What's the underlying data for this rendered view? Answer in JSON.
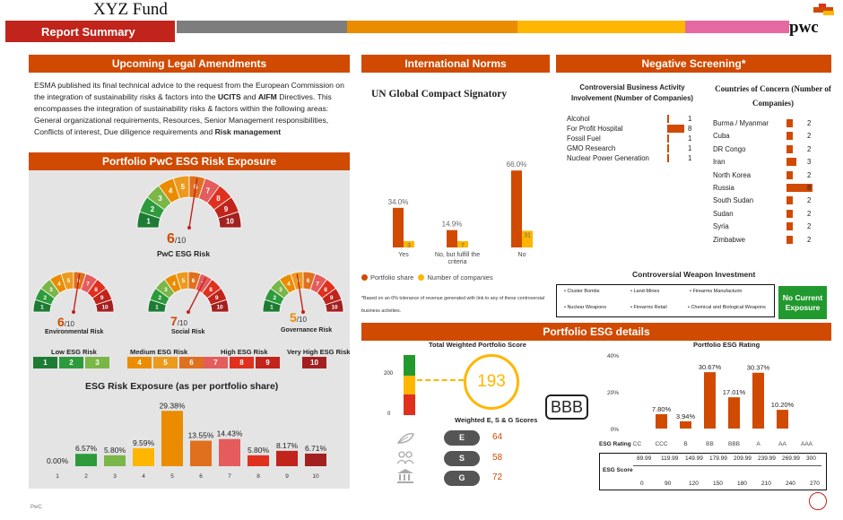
{
  "brand": {
    "fund_title": "XYZ Fund",
    "report_title": "Report Summary",
    "logo_text": "pwc",
    "footer": "PwC"
  },
  "colors": {
    "accent": "#d04a02",
    "dark_red": "#a32020",
    "grey": "#7d7d7d",
    "orange": "#eb8c00",
    "yellow": "#ffb600",
    "pink": "#e669a2",
    "green_box": "#22992e"
  },
  "legal": {
    "header": "Upcoming Legal Amendments",
    "p1": "ESMA published its final technical advice to the request from the European Commission on the integration of sustainability risks & factors into the ",
    "ucits": "UCITS",
    "and": " and ",
    "aifm": "AIFM",
    "p2": " Directives. This encompasses the integration of sustainability risks & factors within the following areas: General organizational requirements, Resources, Senior Management responsibilities, Conflicts of interest, Due diligence requirements and ",
    "risk": "Risk management"
  },
  "esg_exposure": {
    "header": "Portfolio PwC ESG Risk Exposure",
    "main": {
      "value": "6",
      "denom": "/10",
      "label": "PwC ESG Risk"
    },
    "env": {
      "value": "6",
      "denom": "/10",
      "label": "Environmental Risk"
    },
    "social": {
      "value": "7",
      "denom": "/10",
      "label": "Social Risk"
    },
    "gov": {
      "value": "5",
      "denom": "/10",
      "label": "Governance Risk"
    },
    "legend": {
      "low": "Low ESG Risk",
      "medium": "Medium ESG Risk",
      "high": "High ESG Risk",
      "very_high": "Very High ESG Risk"
    },
    "chart_title": "ESG Risk Exposure (as per portfolio share)"
  },
  "norms": {
    "header": "International Norms",
    "title": "UN Global Compact Signatory",
    "legend_share": "Portfolio share",
    "legend_count": "Number of companies",
    "footnote": "*Based on an 0% tolerance of revenue generated with link to any of these controversial business activities."
  },
  "screening": {
    "header": "Negative Screening*",
    "activity_title": "Controversial Business Activity Involvement (Number of Companies)",
    "activities": [
      {
        "name": "Alcohol",
        "value": 1
      },
      {
        "name": "For Profit Hospital",
        "value": 8
      },
      {
        "name": "Fossil Fuel",
        "value": 1
      },
      {
        "name": "GMO Research",
        "value": 1
      },
      {
        "name": "Nuclear Power Generation",
        "value": 1
      }
    ],
    "countries_title": "Countries of Concern (Number of Companies)",
    "countries": [
      {
        "name": "Burma / Myanmar",
        "value": 2
      },
      {
        "name": "Cuba",
        "value": 2
      },
      {
        "name": "DR Congo",
        "value": 2
      },
      {
        "name": "Iran",
        "value": 3
      },
      {
        "name": "North Korea",
        "value": 2
      },
      {
        "name": "Russia",
        "value": 8
      },
      {
        "name": "South Sudan",
        "value": 2
      },
      {
        "name": "Sudan",
        "value": 2
      },
      {
        "name": "Syria",
        "value": 2
      },
      {
        "name": "Zimbabwe",
        "value": 2
      }
    ],
    "weapons_title": "Controversial Weapon Investment",
    "weapons": [
      "Cluster Bombs",
      "Land-Mines",
      "Firearms Manufacturin",
      "Nuclear Weapons",
      "Firearms Retail",
      "Chemical and Biological Weapons"
    ],
    "no_exposure": "No Current Exposure"
  },
  "details": {
    "header": "Portfolio ESG details",
    "twps_title": "Total Weighted Portfolio Score",
    "score": "193",
    "rating": "BBB",
    "axis_top": "200",
    "axis_bottom": "0",
    "weighted_title": "Weighted E, S & G Scores",
    "e": {
      "letter": "E",
      "value": "64"
    },
    "s": {
      "letter": "S",
      "value": "58"
    },
    "g": {
      "letter": "G",
      "value": "72"
    },
    "rating_title": "Portfolio ESG Rating",
    "esg_rating_label": "ESG Rating",
    "esg_score_label": "ESG Score",
    "score_upper": [
      "89.99",
      "119.99",
      "149.99",
      "179.99",
      "209.99",
      "239.99",
      "269.99",
      "300"
    ],
    "score_lower": [
      "0",
      "90",
      "120",
      "150",
      "180",
      "210",
      "240",
      "270"
    ]
  },
  "chart_data": [
    {
      "type": "bar",
      "title": "ESG Risk Exposure (as per portfolio share)",
      "categories": [
        "1",
        "2",
        "3",
        "4",
        "5",
        "6",
        "7",
        "8",
        "9",
        "10"
      ],
      "values": [
        0.0,
        6.57,
        5.8,
        9.59,
        29.38,
        13.55,
        14.43,
        5.8,
        8.17,
        6.71
      ],
      "labels": [
        "0.00%",
        "6.57%",
        "5.80%",
        "9.59%",
        "29.38%",
        "13.55%",
        "14.43%",
        "5.80%",
        "8.17%",
        "6.71%"
      ]
    },
    {
      "type": "bar",
      "title": "UN Global Compact Signatory",
      "categories": [
        "Yes",
        "No, but fulfill the criteria",
        "No"
      ],
      "series": [
        {
          "name": "Portfolio share",
          "values": [
            34.0,
            14.9,
            66.0
          ],
          "labels": [
            "34.0%",
            "14.9%",
            "66.0%"
          ]
        },
        {
          "name": "Number of companies",
          "values": [
            3,
            7,
            31
          ]
        }
      ]
    },
    {
      "type": "bar",
      "title": "Portfolio ESG Rating",
      "categories": [
        "CC",
        "CCC",
        "B",
        "BB",
        "BBB",
        "A",
        "AA",
        "AAA"
      ],
      "values": [
        0,
        7.8,
        3.94,
        30.67,
        17.01,
        30.37,
        10.2,
        0
      ],
      "labels": [
        "",
        "7.80%",
        "3.94%",
        "30.67%",
        "17.01%",
        "30.37%",
        "10.20%",
        ""
      ],
      "ylim": [
        0,
        40
      ],
      "yticks": [
        "0%",
        "20%",
        "40%"
      ]
    }
  ]
}
